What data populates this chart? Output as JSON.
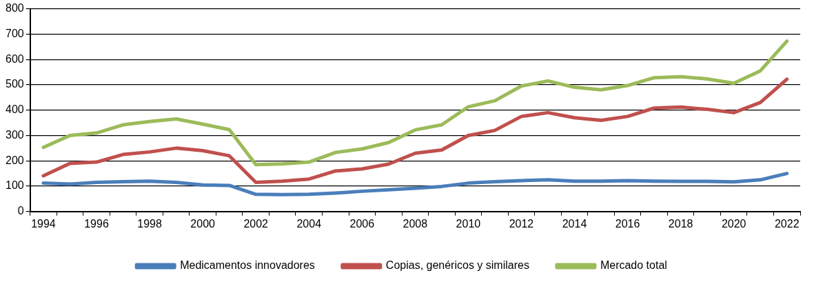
{
  "chart_data": {
    "type": "line",
    "categories": [
      "1994",
      null,
      "1996",
      null,
      "1998",
      null,
      "2000",
      null,
      "2002",
      null,
      "2004",
      null,
      "2006",
      null,
      "2008",
      null,
      "2010",
      null,
      "2012",
      null,
      "2014",
      null,
      "2016",
      null,
      "2018",
      null,
      "2020",
      null,
      "2022"
    ],
    "series": [
      {
        "name": "Medicamentos innovadores",
        "color": "#4a7ebb",
        "values": [
          112,
          108,
          115,
          118,
          120,
          115,
          105,
          103,
          68,
          67,
          68,
          73,
          80,
          86,
          92,
          99,
          112,
          118,
          122,
          125,
          120,
          120,
          122,
          120,
          119,
          119,
          117,
          125,
          150
        ]
      },
      {
        "name": "Copias, genéricos y similares",
        "color": "#c0504d",
        "values": [
          141,
          190,
          195,
          225,
          235,
          250,
          240,
          220,
          115,
          120,
          128,
          160,
          168,
          187,
          230,
          243,
          300,
          320,
          375,
          390,
          370,
          360,
          375,
          408,
          412,
          403,
          390,
          430,
          522
        ]
      },
      {
        "name": "Mercado total",
        "color": "#9bbb59",
        "values": [
          253,
          300,
          310,
          342,
          355,
          365,
          345,
          323,
          185,
          188,
          195,
          233,
          247,
          272,
          322,
          342,
          413,
          437,
          495,
          515,
          490,
          480,
          497,
          528,
          532,
          523,
          506,
          555,
          672
        ]
      }
    ],
    "ylim": [
      0,
      800
    ],
    "yticks": [
      0,
      100,
      200,
      300,
      400,
      500,
      600,
      700,
      800
    ],
    "grid": "y",
    "legend": "bottom",
    "marker": "none",
    "line_style": "solid"
  }
}
